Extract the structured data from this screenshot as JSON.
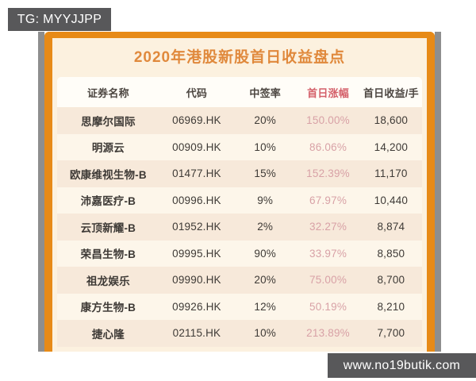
{
  "watermarks": {
    "top_left": "TG: MYYJJPP",
    "bottom_right": "www.no19butik.com"
  },
  "chart_data": {
    "type": "table",
    "title": "2020年港股新股首日收益盘点",
    "columns": [
      "证券名称",
      "代码",
      "中签率",
      "首日涨幅",
      "首日收益/手"
    ],
    "rows": [
      [
        "思摩尔国际",
        "06969.HK",
        "20%",
        "150.00%",
        "18,600"
      ],
      [
        "明源云",
        "00909.HK",
        "10%",
        "86.06%",
        "14,200"
      ],
      [
        "欧康维视生物-B",
        "01477.HK",
        "15%",
        "152.39%",
        "11,170"
      ],
      [
        "沛嘉医疗-B",
        "00996.HK",
        "9%",
        "67.97%",
        "10,440"
      ],
      [
        "云顶新耀-B",
        "01952.HK",
        "2%",
        "32.27%",
        "8,874"
      ],
      [
        "荣昌生物-B",
        "09995.HK",
        "90%",
        "33.97%",
        "8,850"
      ],
      [
        "祖龙娱乐",
        "09990.HK",
        "20%",
        "75.00%",
        "8,700"
      ],
      [
        "康方生物-B",
        "09926.HK",
        "12%",
        "50.19%",
        "8,210"
      ],
      [
        "捷心隆",
        "02115.HK",
        "10%",
        "213.89%",
        "7,700"
      ]
    ]
  },
  "colors": {
    "frame-orange": "#e78a17",
    "title-orange": "#e0893c",
    "cream": "#fcf1df",
    "header-bg": "#fffdf8",
    "row-odd": "#f7e9da",
    "row-even": "#fdf6ea",
    "header-text": "#4c4641",
    "cell-text": "#3e3a36",
    "accent-red": "#d4606a",
    "gain-pink": "#d8a1a6",
    "badge-bg": "#58585a",
    "strip-gray": "#8e8e8e"
  }
}
